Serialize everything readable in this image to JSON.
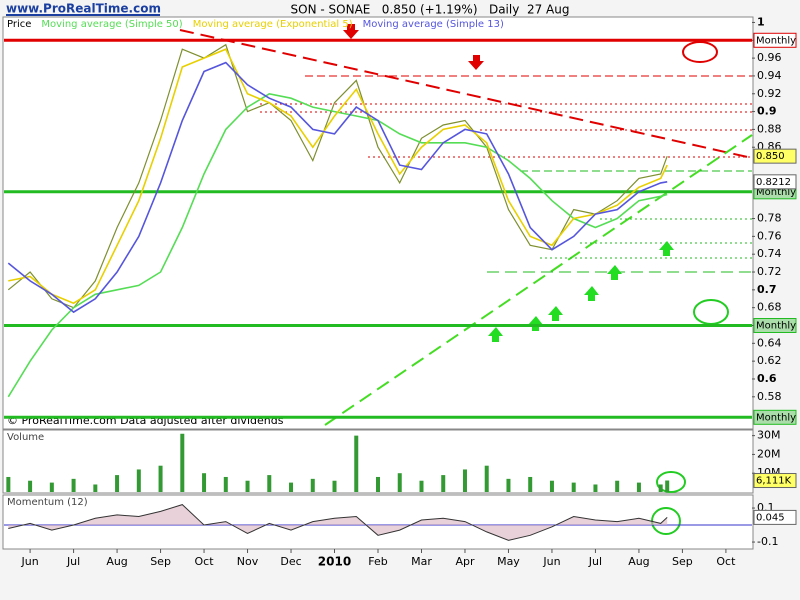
{
  "header": {
    "logo": "www.ProRealTime.com"
  },
  "chart_data": [
    {
      "type": "line",
      "title": "SON - SONAE   0.850 (+1.19%)   Daily  27 Aug",
      "annotation": "© ProRealTime.com  Data adjusted after dividends",
      "x": [
        0,
        0.5,
        1,
        1.5,
        2,
        2.5,
        3,
        3.5,
        4,
        4.5,
        5,
        5.5,
        6,
        6.5,
        7,
        7.5,
        8,
        8.5,
        9,
        9.5,
        10,
        10.5,
        11,
        11.5,
        12,
        12.5,
        13,
        13.5,
        14,
        14.5,
        15,
        15.15
      ],
      "xlim": [
        -0.1,
        17.1
      ],
      "ylim": [
        0.545,
        1.005
      ],
      "yticks": [
        1,
        0.98,
        0.96,
        0.94,
        0.92,
        0.9,
        0.88,
        0.86,
        0.78,
        0.76,
        0.74,
        0.72,
        0.7,
        0.68,
        0.66,
        0.64,
        0.62,
        0.6,
        0.58
      ],
      "series": [
        {
          "name": "Price",
          "color": "#7d8f2e",
          "values": [
            0.7,
            0.72,
            0.69,
            0.68,
            0.71,
            0.77,
            0.82,
            0.89,
            0.97,
            0.96,
            0.975,
            0.9,
            0.91,
            0.89,
            0.845,
            0.91,
            0.935,
            0.86,
            0.82,
            0.87,
            0.885,
            0.89,
            0.86,
            0.79,
            0.75,
            0.745,
            0.79,
            0.785,
            0.8,
            0.825,
            0.83,
            0.85
          ]
        },
        {
          "name": "Moving average (Simple 50)",
          "color": "#55dd55",
          "values": [
            0.58,
            0.62,
            0.655,
            0.68,
            0.695,
            0.7,
            0.705,
            0.72,
            0.77,
            0.83,
            0.88,
            0.905,
            0.92,
            0.915,
            0.905,
            0.9,
            0.895,
            0.89,
            0.875,
            0.865,
            0.865,
            0.865,
            0.86,
            0.845,
            0.825,
            0.8,
            0.78,
            0.77,
            0.78,
            0.8,
            0.805,
            0.807
          ]
        },
        {
          "name": "Moving average (Exponential 5)",
          "color": "#e8d000",
          "values": [
            0.71,
            0.715,
            0.695,
            0.685,
            0.7,
            0.75,
            0.8,
            0.87,
            0.95,
            0.96,
            0.97,
            0.92,
            0.91,
            0.895,
            0.86,
            0.895,
            0.925,
            0.875,
            0.83,
            0.86,
            0.88,
            0.885,
            0.865,
            0.8,
            0.76,
            0.75,
            0.78,
            0.785,
            0.795,
            0.815,
            0.825,
            0.84
          ]
        },
        {
          "name": "Moving average (Simple 13)",
          "color": "#5555dd",
          "values": [
            0.73,
            0.71,
            0.695,
            0.675,
            0.69,
            0.72,
            0.76,
            0.82,
            0.89,
            0.945,
            0.955,
            0.93,
            0.915,
            0.905,
            0.88,
            0.875,
            0.905,
            0.89,
            0.84,
            0.835,
            0.865,
            0.88,
            0.875,
            0.83,
            0.77,
            0.745,
            0.76,
            0.785,
            0.79,
            0.81,
            0.82,
            0.8212
          ]
        }
      ],
      "levels": [
        {
          "value": 0.98,
          "label": "Monthly",
          "color": "#e00000"
        },
        {
          "value": 0.81,
          "label": "Monthly",
          "color": "#22bb22"
        },
        {
          "value": 0.66,
          "label": "Monthly",
          "color": "#22bb22"
        },
        {
          "value": 0.557,
          "label": "Monthly",
          "color": "#22bb22"
        }
      ],
      "price_tags": [
        {
          "value": 0.85,
          "label": "0.850",
          "color": "#ffff66"
        },
        {
          "value": 0.8212,
          "label": "0.8212",
          "color": "#ffffff"
        }
      ]
    },
    {
      "type": "bar",
      "title": "Volume",
      "x": [
        0,
        0.5,
        1,
        1.5,
        2,
        2.5,
        3,
        3.5,
        4,
        4.5,
        5,
        5.5,
        6,
        6.5,
        7,
        7.5,
        8,
        8.5,
        9,
        9.5,
        10,
        10.5,
        11,
        11.5,
        12,
        12.5,
        13,
        13.5,
        14,
        14.5,
        15,
        15.15
      ],
      "xlim": [
        -0.1,
        17.1
      ],
      "ylim": [
        0,
        33000000
      ],
      "yticks": [
        {
          "value": 30000000,
          "label": "30M"
        },
        {
          "value": 20000000,
          "label": "20M"
        },
        {
          "value": 10000000,
          "label": "10M"
        }
      ],
      "color": "#339933",
      "values": [
        8000000,
        6000000,
        5000000,
        7000000,
        4000000,
        9000000,
        12000000,
        14000000,
        31000000,
        10000000,
        8000000,
        6000000,
        9000000,
        5000000,
        7000000,
        6000000,
        30000000,
        8000000,
        10000000,
        6000000,
        9000000,
        12000000,
        14000000,
        7000000,
        8000000,
        6000000,
        5000000,
        4000000,
        6000000,
        5000000,
        4000000,
        6111000
      ],
      "price_tags": [
        {
          "value": 6111000,
          "label": "6,111K",
          "color": "#ffff66"
        }
      ]
    },
    {
      "type": "area",
      "title": "Momentum (12)",
      "x": [
        0,
        0.5,
        1,
        1.5,
        2,
        2.5,
        3,
        3.5,
        4,
        4.5,
        5,
        5.5,
        6,
        6.5,
        7,
        7.5,
        8,
        8.5,
        9,
        9.5,
        10,
        10.5,
        11,
        11.5,
        12,
        12.5,
        13,
        13.5,
        14,
        14.5,
        15,
        15.15
      ],
      "xlim": [
        -0.1,
        17.1
      ],
      "ylim": [
        -0.135,
        0.165
      ],
      "yticks": [
        0.1,
        -0.1
      ],
      "color": "#333333",
      "values": [
        -0.02,
        0.01,
        -0.03,
        0,
        0.04,
        0.06,
        0.05,
        0.08,
        0.12,
        0,
        0.02,
        -0.05,
        0.01,
        -0.03,
        0.02,
        0.04,
        0.05,
        -0.06,
        -0.03,
        0.03,
        0.04,
        0.02,
        -0.04,
        -0.09,
        -0.06,
        -0.01,
        0.05,
        0.03,
        0.02,
        0.04,
        0.01,
        0.045
      ],
      "price_tags": [
        {
          "value": 0.045,
          "label": "0.045",
          "color": "#ffffff"
        }
      ],
      "xticks": [
        {
          "value": 0.5,
          "label": "Jun"
        },
        {
          "value": 1.5,
          "label": "Jul"
        },
        {
          "value": 2.5,
          "label": "Aug"
        },
        {
          "value": 3.5,
          "label": "Sep"
        },
        {
          "value": 4.5,
          "label": "Oct"
        },
        {
          "value": 5.5,
          "label": "Nov"
        },
        {
          "value": 6.5,
          "label": "Dec"
        },
        {
          "value": 7.5,
          "label": "2010"
        },
        {
          "value": 8.5,
          "label": "Feb"
        },
        {
          "value": 9.5,
          "label": "Mar"
        },
        {
          "value": 10.5,
          "label": "Apr"
        },
        {
          "value": 11.5,
          "label": "May"
        },
        {
          "value": 12.5,
          "label": "Jun"
        },
        {
          "value": 13.5,
          "label": "Jul"
        },
        {
          "value": 14.5,
          "label": "Aug"
        },
        {
          "value": 15.5,
          "label": "Sep"
        },
        {
          "value": 16.5,
          "label": "Oct"
        }
      ]
    }
  ]
}
